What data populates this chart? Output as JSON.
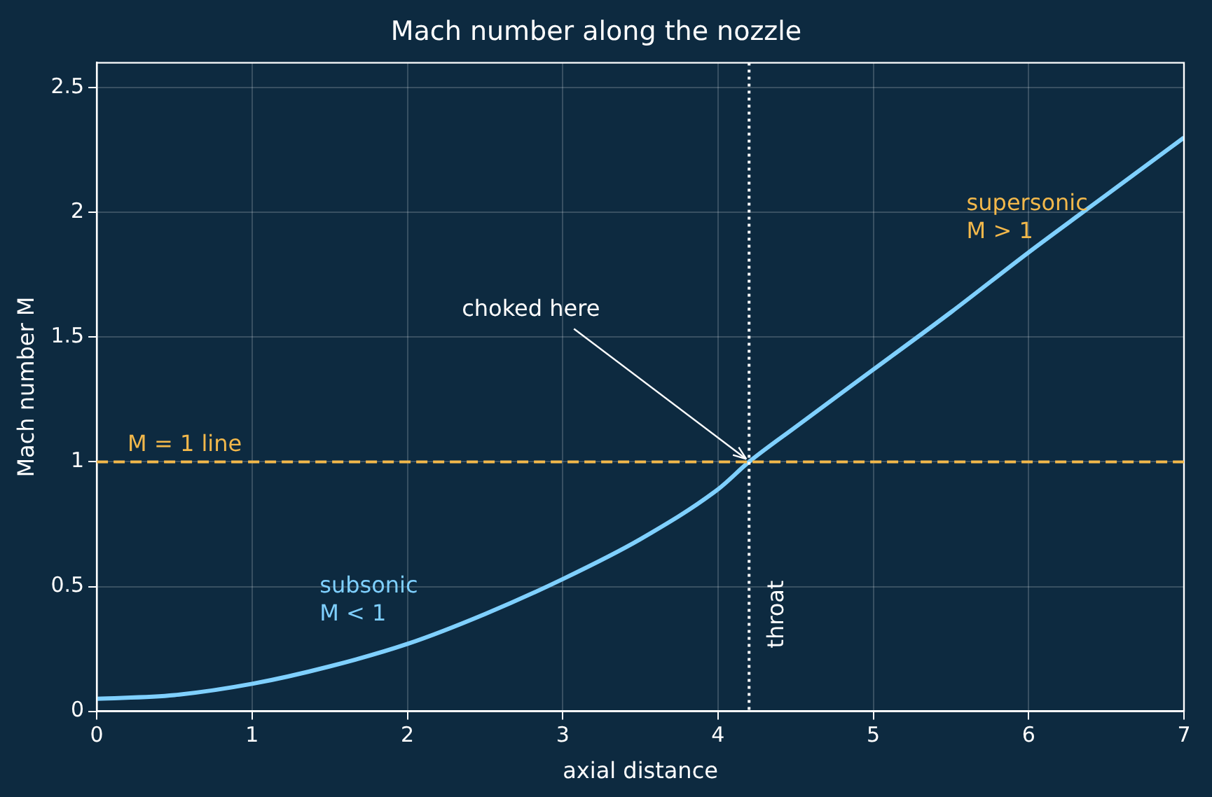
{
  "chart_data": {
    "type": "line",
    "title": "Mach number along the nozzle",
    "xlabel": "axial distance",
    "ylabel": "Mach number M",
    "x": [
      0,
      0.5,
      1,
      1.5,
      2,
      2.5,
      3,
      3.5,
      4,
      4.2,
      4.5,
      5,
      5.5,
      6,
      6.5,
      7
    ],
    "series": [
      {
        "color": "#7fd0ff",
        "values": [
          0.05,
          0.065,
          0.11,
          0.18,
          0.27,
          0.39,
          0.53,
          0.69,
          0.89,
          1.0,
          1.14,
          1.37,
          1.6,
          1.84,
          2.07,
          2.3
        ]
      }
    ],
    "xlim": [
      0,
      7
    ],
    "xticks": [
      0,
      1,
      2,
      3,
      4,
      5,
      6,
      7
    ],
    "ylim": [
      0,
      2.6
    ],
    "yticks": [
      0,
      0.5,
      1,
      1.5,
      2,
      2.5
    ],
    "ref_lines": [
      {
        "axis": "y",
        "value": 1,
        "label": "M = 1 line",
        "color": "#f2b84b",
        "line_style": "dashed"
      },
      {
        "axis": "x",
        "value": 4.2,
        "label": "throat",
        "color": "#ffffff",
        "line_style": "dotted"
      }
    ],
    "annotations": [
      {
        "text": "choked here",
        "x": 4.2,
        "y": 1
      },
      "subsonic\nM < 1",
      "supersonic\nM > 1"
    ],
    "grid": true,
    "legend": false,
    "marker": "none",
    "line_style": "solid"
  }
}
